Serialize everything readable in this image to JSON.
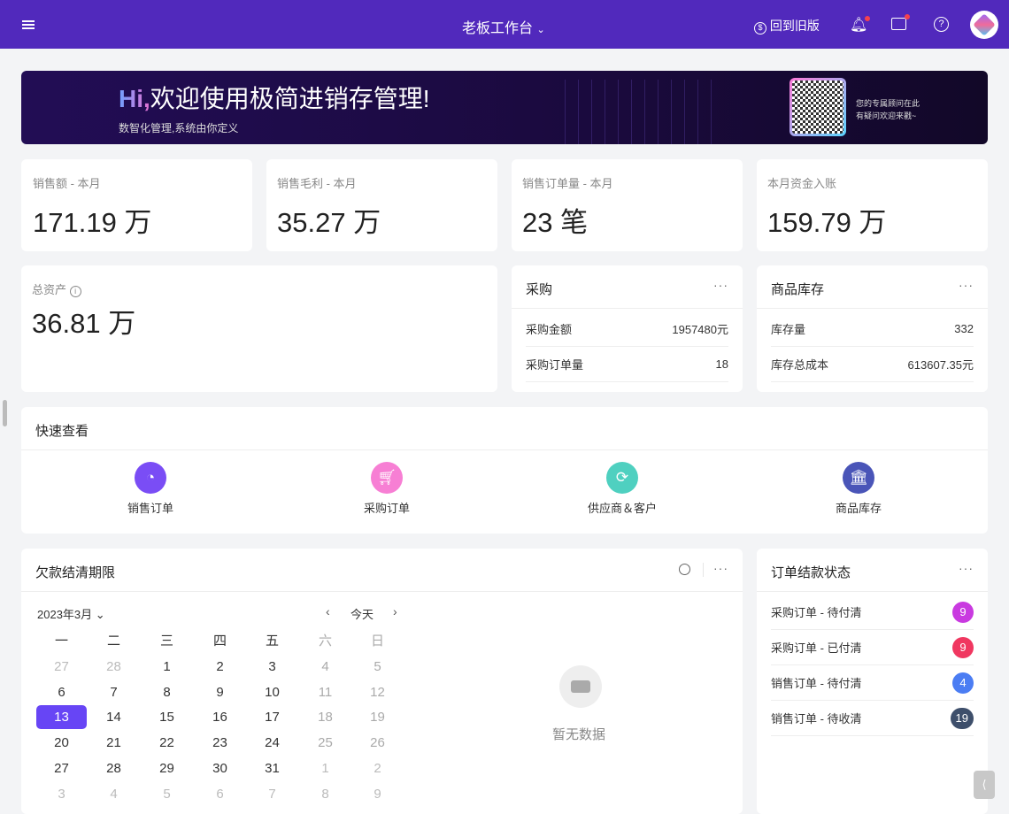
{
  "header": {
    "title": "老板工作台",
    "old_version": "回到旧版",
    "menu_icon": "hamburger-icon",
    "icons": [
      "bell-icon",
      "briefcase-icon",
      "help-icon"
    ],
    "color": "#5129bc"
  },
  "banner": {
    "hi": "Hi,",
    "title": "欢迎使用极简进销存管理!",
    "subtitle": "数智化管理,系统由你定义",
    "qr_line1": "您的专属顾问在此",
    "qr_line2": "有疑问欢迎来戳~"
  },
  "stats": [
    {
      "label": "销售额 - 本月",
      "value": "171.19 万"
    },
    {
      "label": "销售毛利 - 本月",
      "value": "35.27 万"
    },
    {
      "label": "销售订单量 - 本月",
      "value": "23 笔"
    },
    {
      "label": "本月资金入账",
      "value": "159.79 万"
    }
  ],
  "assets": {
    "label": "总资产",
    "value": "36.81 万"
  },
  "purchase": {
    "title": "采购",
    "rows": [
      {
        "k": "采购金额",
        "v": "1957480元"
      },
      {
        "k": "采购订单量",
        "v": "18"
      }
    ]
  },
  "stock": {
    "title": "商品库存",
    "rows": [
      {
        "k": "库存量",
        "v": "332"
      },
      {
        "k": "库存总成本",
        "v": "613607.35元"
      }
    ]
  },
  "quick": {
    "title": "快速查看",
    "items": [
      {
        "label": "销售订单",
        "color": "#7a4df5",
        "icon": "pie-chart-icon"
      },
      {
        "label": "采购订单",
        "color": "#f77fd4",
        "icon": "cart-icon"
      },
      {
        "label": "供应商＆客户",
        "color": "#4fd0c0",
        "icon": "refresh-icon"
      },
      {
        "label": "商品库存",
        "color": "#4a55b8",
        "icon": "bank-icon"
      }
    ]
  },
  "calendar": {
    "title": "欠款结清期限",
    "month": "2023年3月",
    "today": "今天",
    "empty": "暂无数据",
    "weekdays": [
      "一",
      "二",
      "三",
      "四",
      "五",
      "六",
      "日"
    ],
    "weeks": [
      [
        "27",
        "28",
        "1",
        "2",
        "3",
        "4",
        "5"
      ],
      [
        "6",
        "7",
        "8",
        "9",
        "10",
        "11",
        "12"
      ],
      [
        "13",
        "14",
        "15",
        "16",
        "17",
        "18",
        "19"
      ],
      [
        "20",
        "21",
        "22",
        "23",
        "24",
        "25",
        "26"
      ],
      [
        "27",
        "28",
        "29",
        "30",
        "31",
        "1",
        "2"
      ],
      [
        "3",
        "4",
        "5",
        "6",
        "7",
        "8",
        "9"
      ]
    ],
    "selected": "13"
  },
  "order_status": {
    "title": "订单结款状态",
    "rows": [
      {
        "k": "采购订单 - 待付清",
        "v": "9",
        "color": "#c93ae0"
      },
      {
        "k": "采购订单 - 已付清",
        "v": "9",
        "color": "#f03760"
      },
      {
        "k": "销售订单 - 待付清",
        "v": "4",
        "color": "#4b7df3"
      },
      {
        "k": "销售订单 - 待收清",
        "v": "19",
        "color": "#3e4f6b"
      }
    ]
  }
}
